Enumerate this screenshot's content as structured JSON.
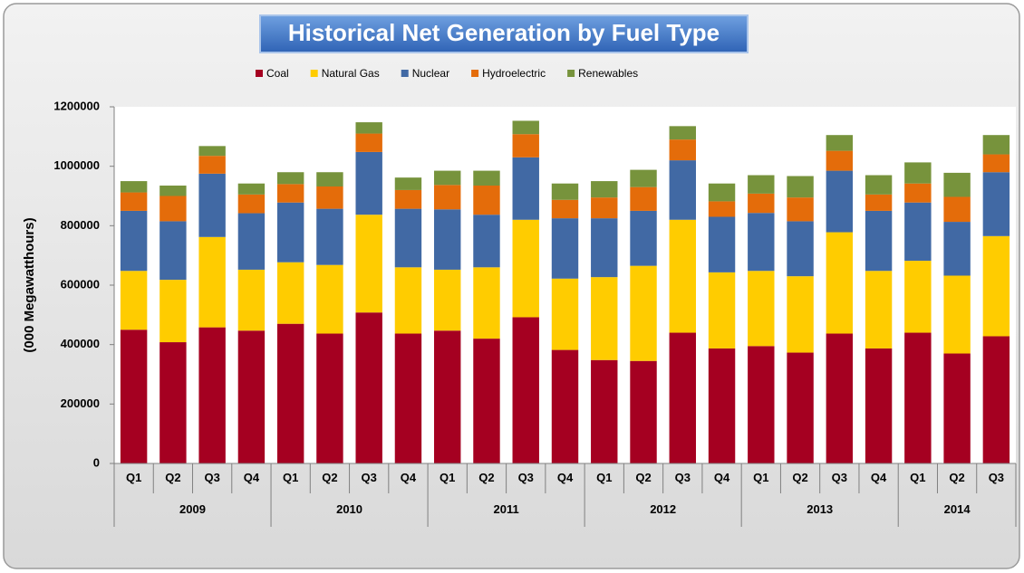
{
  "chart_data": {
    "type": "stacked_bar",
    "title": "Historical Net Generation by Fuel Type",
    "y_label": "(000 Megawatthours)",
    "groups": [
      {
        "name": "2009",
        "categories": [
          "Q1",
          "Q2",
          "Q3",
          "Q4"
        ]
      },
      {
        "name": "2010",
        "categories": [
          "Q1",
          "Q2",
          "Q3",
          "Q4"
        ]
      },
      {
        "name": "2011",
        "categories": [
          "Q1",
          "Q2",
          "Q3",
          "Q4"
        ]
      },
      {
        "name": "2012",
        "categories": [
          "Q1",
          "Q2",
          "Q3",
          "Q4"
        ]
      },
      {
        "name": "2013",
        "categories": [
          "Q1",
          "Q2",
          "Q3",
          "Q4"
        ]
      },
      {
        "name": "2014",
        "categories": [
          "Q1",
          "Q2",
          "Q3"
        ]
      }
    ],
    "series": [
      {
        "name": "Coal",
        "color": "#a50021",
        "values": [
          450000,
          408000,
          458000,
          447000,
          470000,
          437000,
          508000,
          437000,
          447000,
          420000,
          492000,
          382000,
          348000,
          345000,
          440000,
          387000,
          395000,
          373000,
          437000,
          387000,
          440000,
          370000,
          428000
        ]
      },
      {
        "name": "Natural Gas",
        "color": "#ffcc00",
        "values": [
          198000,
          210000,
          304000,
          205000,
          207000,
          231000,
          329000,
          223000,
          205000,
          240000,
          328000,
          240000,
          279000,
          320000,
          380000,
          256000,
          253000,
          257000,
          341000,
          261000,
          242000,
          262000,
          337000
        ]
      },
      {
        "name": "Nuclear",
        "color": "#4169a4",
        "values": [
          202000,
          197000,
          213000,
          190000,
          201000,
          189000,
          211000,
          197000,
          203000,
          177000,
          210000,
          203000,
          198000,
          185000,
          200000,
          187000,
          195000,
          185000,
          207000,
          202000,
          196000,
          181000,
          215000
        ]
      },
      {
        "name": "Hydroelectric",
        "color": "#e46c0a",
        "values": [
          62000,
          85000,
          60000,
          63000,
          62000,
          75000,
          62000,
          63000,
          82000,
          98000,
          78000,
          62000,
          70000,
          80000,
          70000,
          52000,
          65000,
          80000,
          67000,
          55000,
          64000,
          84000,
          60000
        ]
      },
      {
        "name": "Renewables",
        "color": "#77933c",
        "values": [
          38000,
          35000,
          33000,
          37000,
          40000,
          48000,
          38000,
          42000,
          48000,
          50000,
          45000,
          55000,
          55000,
          58000,
          45000,
          60000,
          62000,
          72000,
          53000,
          65000,
          71000,
          81000,
          65000
        ]
      }
    ],
    "ylim": [
      0,
      1200000
    ],
    "yticks": [
      0,
      200000,
      400000,
      600000,
      800000,
      1000000,
      1200000
    ],
    "grid": false
  }
}
